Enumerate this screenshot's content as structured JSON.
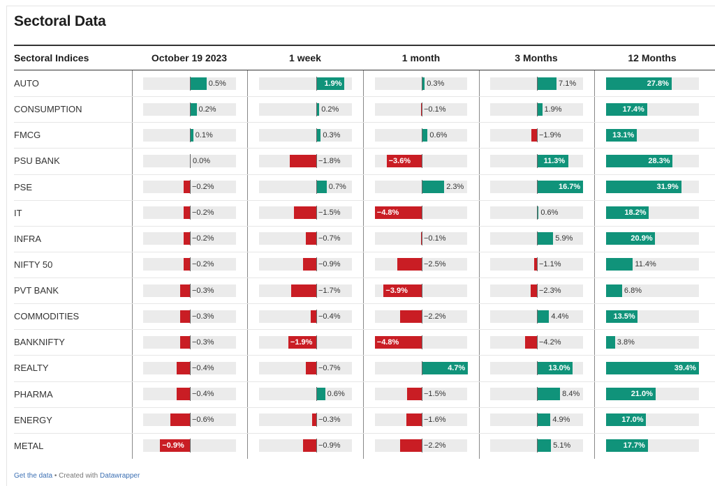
{
  "title": "Sectoral Data",
  "footer": {
    "get_data": "Get the data",
    "separator": " • Created with ",
    "tool": "Datawrapper"
  },
  "colors": {
    "positive": "#10937a",
    "negative": "#c91d24",
    "track": "#ebebeb"
  },
  "chart_data": {
    "type": "table",
    "row_header": "Sectoral Indices",
    "columns": [
      "October 19 2023",
      "1 week",
      "1 month",
      "3 Months",
      "12 Months"
    ],
    "rows": [
      {
        "name": "AUTO",
        "values": [
          0.5,
          1.9,
          0.3,
          7.1,
          27.8
        ],
        "labels": [
          "0.5%",
          "1.9%",
          "0.3%",
          "7.1%",
          "27.8%"
        ]
      },
      {
        "name": "CONSUMPTION",
        "values": [
          0.2,
          0.2,
          -0.1,
          1.9,
          17.4
        ],
        "labels": [
          "0.2%",
          "0.2%",
          "−0.1%",
          "1.9%",
          "17.4%"
        ]
      },
      {
        "name": "FMCG",
        "values": [
          0.1,
          0.3,
          0.6,
          -1.9,
          13.1
        ],
        "labels": [
          "0.1%",
          "0.3%",
          "0.6%",
          "−1.9%",
          "13.1%"
        ]
      },
      {
        "name": "PSU BANK",
        "values": [
          0.0,
          -1.8,
          -3.6,
          11.3,
          28.3
        ],
        "labels": [
          "0.0%",
          "−1.8%",
          "−3.6%",
          "11.3%",
          "28.3%"
        ]
      },
      {
        "name": "PSE",
        "values": [
          -0.2,
          0.7,
          2.3,
          16.7,
          31.9
        ],
        "labels": [
          "−0.2%",
          "0.7%",
          "2.3%",
          "16.7%",
          "31.9%"
        ]
      },
      {
        "name": "IT",
        "values": [
          -0.2,
          -1.5,
          -4.8,
          0.6,
          18.2
        ],
        "labels": [
          "−0.2%",
          "−1.5%",
          "−4.8%",
          "0.6%",
          "18.2%"
        ]
      },
      {
        "name": "INFRA",
        "values": [
          -0.2,
          -0.7,
          -0.1,
          5.9,
          20.9
        ],
        "labels": [
          "−0.2%",
          "−0.7%",
          "−0.1%",
          "5.9%",
          "20.9%"
        ]
      },
      {
        "name": "NIFTY 50",
        "values": [
          -0.2,
          -0.9,
          -2.5,
          -1.1,
          11.4
        ],
        "labels": [
          "−0.2%",
          "−0.9%",
          "−2.5%",
          "−1.1%",
          "11.4%"
        ]
      },
      {
        "name": "PVT BANK",
        "values": [
          -0.3,
          -1.7,
          -3.9,
          -2.3,
          6.8
        ],
        "labels": [
          "−0.3%",
          "−1.7%",
          "−3.9%",
          "−2.3%",
          "6.8%"
        ]
      },
      {
        "name": "COMMODITIES",
        "values": [
          -0.3,
          -0.4,
          -2.2,
          4.4,
          13.5
        ],
        "labels": [
          "−0.3%",
          "−0.4%",
          "−2.2%",
          "4.4%",
          "13.5%"
        ]
      },
      {
        "name": "BANKNIFTY",
        "values": [
          -0.3,
          -1.9,
          -4.8,
          -4.2,
          3.8
        ],
        "labels": [
          "−0.3%",
          "−1.9%",
          "−4.8%",
          "−4.2%",
          "3.8%"
        ]
      },
      {
        "name": "REALTY",
        "values": [
          -0.4,
          -0.7,
          4.7,
          13.0,
          39.4
        ],
        "labels": [
          "−0.4%",
          "−0.7%",
          "4.7%",
          "13.0%",
          "39.4%"
        ]
      },
      {
        "name": "PHARMA",
        "values": [
          -0.4,
          0.6,
          -1.5,
          8.4,
          21.0
        ],
        "labels": [
          "−0.4%",
          "0.6%",
          "−1.5%",
          "8.4%",
          "21.0%"
        ]
      },
      {
        "name": "ENERGY",
        "values": [
          -0.6,
          -0.3,
          -1.6,
          4.9,
          17.0
        ],
        "labels": [
          "−0.6%",
          "−0.3%",
          "−1.6%",
          "4.9%",
          "17.0%"
        ]
      },
      {
        "name": "METAL",
        "values": [
          -0.9,
          -0.9,
          -2.2,
          5.1,
          17.7
        ],
        "labels": [
          "−0.9%",
          "−0.9%",
          "−2.2%",
          "5.1%",
          "17.7%"
        ]
      }
    ]
  }
}
